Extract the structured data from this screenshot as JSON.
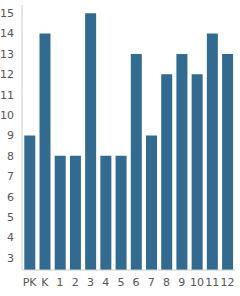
{
  "chart_data": {
    "type": "bar",
    "categories": [
      "PK",
      "K",
      "1",
      "2",
      "3",
      "4",
      "5",
      "6",
      "7",
      "8",
      "9",
      "10",
      "11",
      "12"
    ],
    "values": [
      9,
      14,
      8,
      8,
      15,
      8,
      8,
      13,
      9,
      12,
      13,
      12,
      14,
      13
    ],
    "color": "#336a90",
    "ylim": [
      2.4,
      15.4
    ],
    "yticks": [
      3,
      4,
      5,
      6,
      7,
      8,
      9,
      10,
      11,
      12,
      13,
      14,
      15
    ],
    "grid": false
  }
}
